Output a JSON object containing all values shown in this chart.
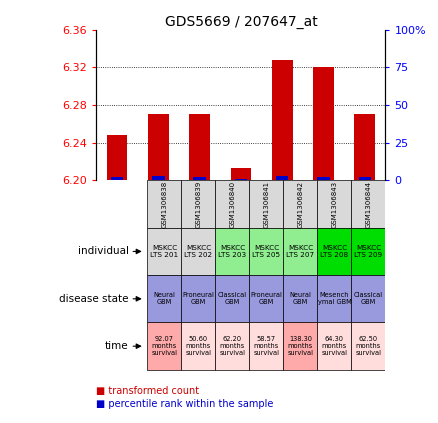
{
  "title": "GDS5669 / 207647_at",
  "samples": [
    "GSM1306838",
    "GSM1306839",
    "GSM1306840",
    "GSM1306841",
    "GSM1306842",
    "GSM1306843",
    "GSM1306844"
  ],
  "transformed_counts": [
    6.248,
    6.27,
    6.27,
    6.213,
    6.328,
    6.32,
    6.27
  ],
  "percentile_ranks": [
    2,
    3,
    2,
    1,
    3,
    2,
    2
  ],
  "y_min": 6.2,
  "y_max": 6.36,
  "y_ticks": [
    6.2,
    6.24,
    6.28,
    6.32,
    6.36
  ],
  "y2_ticks": [
    0,
    25,
    50,
    75,
    100
  ],
  "sample_row_color": "#d9d9d9",
  "individual_labels": [
    "MSKCC\nLTS 201",
    "MSKCC\nLTS 202",
    "MSKCC\nLTS 203",
    "MSKCC\nLTS 205",
    "MSKCC\nLTS 207",
    "MSKCC\nLTS 208",
    "MSKCC\nLTS 209"
  ],
  "individual_colors": [
    "#d9d9d9",
    "#d9d9d9",
    "#90ee90",
    "#90ee90",
    "#90ee90",
    "#00dd00",
    "#00dd00"
  ],
  "disease_state_labels": [
    "Neural\nGBM",
    "Proneural\nGBM",
    "Classical\nGBM",
    "Proneural\nGBM",
    "Neural\nGBM",
    "Mesench\nymal GBM",
    "Classical\nGBM"
  ],
  "disease_state_color": "#9999dd",
  "time_labels": [
    "92.07\nmonths\nsurvival",
    "50.60\nmonths\nsurvival",
    "62.20\nmonths\nsurvival",
    "58.57\nmonths\nsurvival",
    "138.30\nmonths\nsurvival",
    "64.30\nmonths\nsurvival",
    "62.50\nmonths\nsurvival"
  ],
  "time_colors": [
    "#ffaaaa",
    "#ffdddd",
    "#ffdddd",
    "#ffdddd",
    "#ffaaaa",
    "#ffdddd",
    "#ffdddd"
  ],
  "bar_color": "#cc0000",
  "percentile_color": "#0000cc",
  "legend_items": [
    "transformed count",
    "percentile rank within the sample"
  ],
  "legend_colors": [
    "#cc0000",
    "#0000cc"
  ],
  "row_labels": [
    "individual",
    "disease state",
    "time"
  ]
}
